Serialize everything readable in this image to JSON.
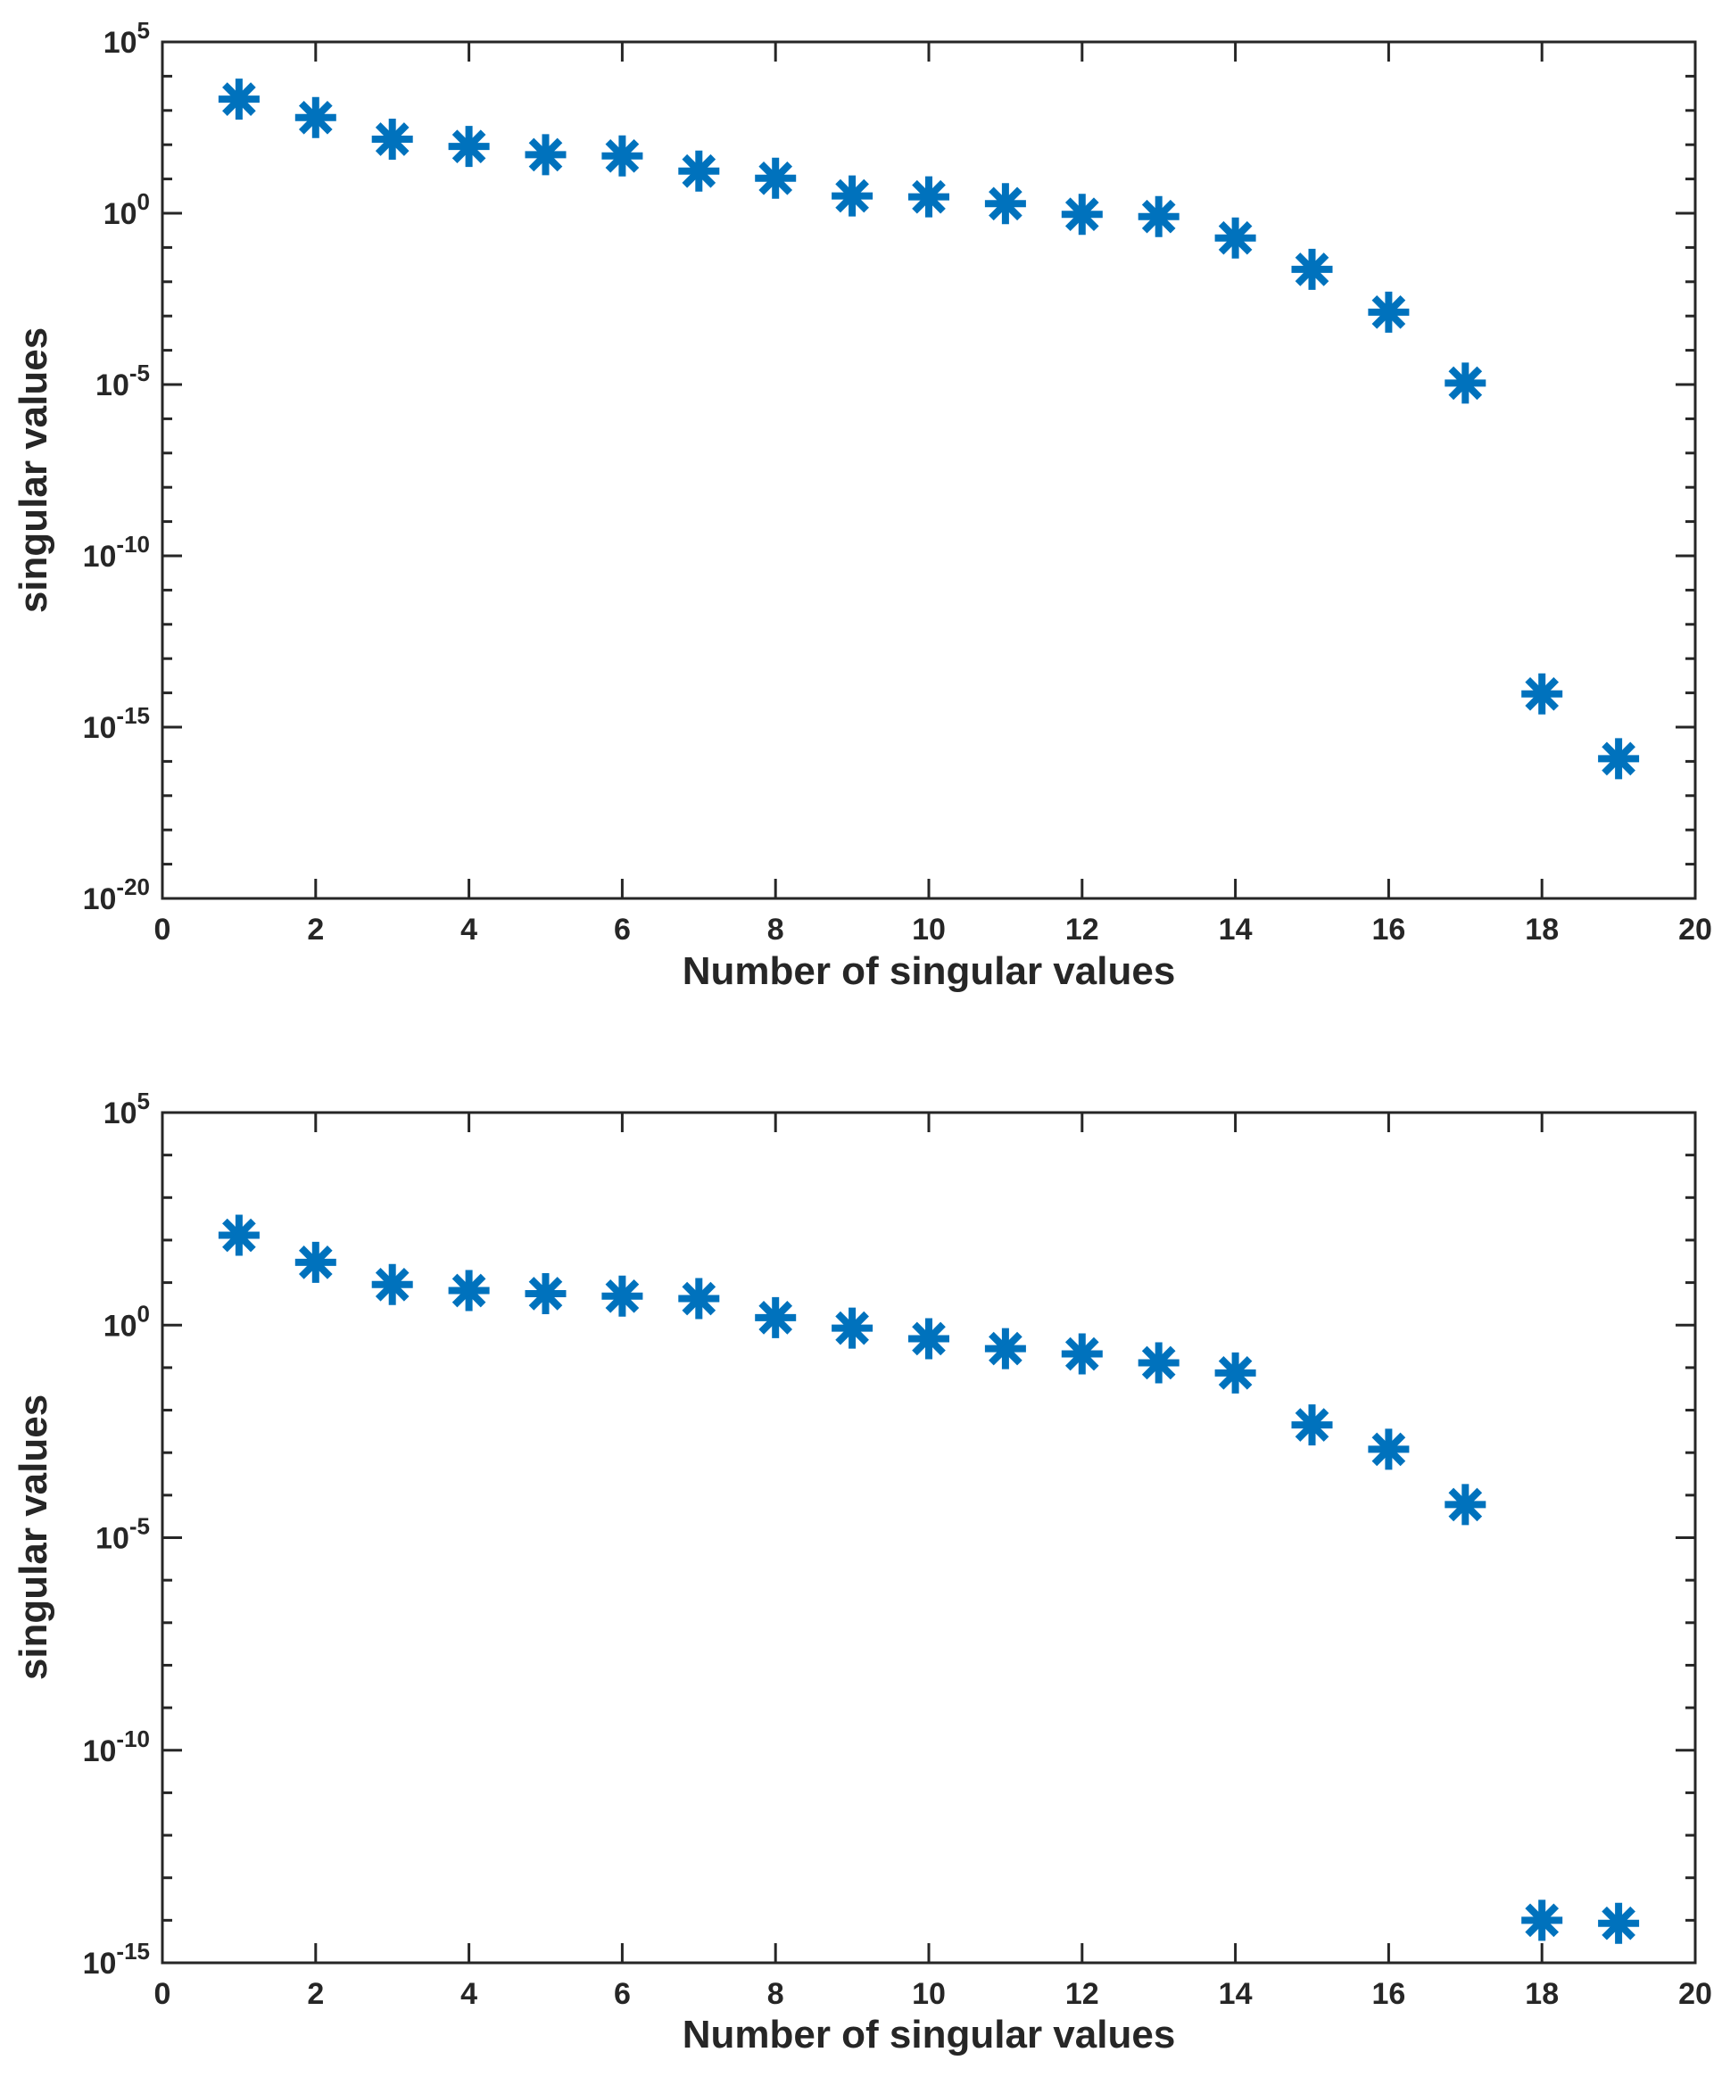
{
  "figure": {
    "background": "#ffffff",
    "marker_color": "#0072BD",
    "axis_color": "#262626",
    "text_color": "#262626"
  },
  "chart_data": [
    {
      "type": "scatter",
      "marker": "asterisk",
      "xlabel": "Number of singular values",
      "ylabel": "singular values",
      "x": [
        1,
        2,
        3,
        4,
        5,
        6,
        7,
        8,
        9,
        10,
        11,
        12,
        13,
        14,
        15,
        16,
        17,
        18,
        19
      ],
      "y": [
        2140,
        620,
        145,
        89,
        51,
        47,
        17,
        10.5,
        3.2,
        3.0,
        1.9,
        0.93,
        0.8,
        0.19,
        0.023,
        0.0013,
        1.1e-05,
        9.3e-15,
        1.2e-16
      ],
      "xlim": [
        0,
        20
      ],
      "xtick_values": [
        0,
        2,
        4,
        6,
        8,
        10,
        12,
        14,
        16,
        18,
        20
      ],
      "xtick_labels": [
        "0",
        "2",
        "4",
        "6",
        "8",
        "10",
        "12",
        "14",
        "16",
        "18",
        "20"
      ],
      "yscale": "log",
      "ylog_range": [
        5,
        -20
      ],
      "ytick_exponents": [
        5,
        0,
        -5,
        -10,
        -15,
        -20
      ],
      "ytick_labels": [
        "10^5",
        "10^0",
        "10^-5",
        "10^-10",
        "10^-15",
        "10^-20"
      ],
      "grid": false,
      "legend": null
    },
    {
      "type": "scatter",
      "marker": "asterisk",
      "xlabel": "Number of singular values",
      "ylabel": "singular values",
      "x": [
        1,
        2,
        3,
        4,
        5,
        6,
        7,
        8,
        9,
        10,
        11,
        12,
        13,
        14,
        15,
        16,
        17,
        18,
        19
      ],
      "y": [
        130,
        30,
        9,
        6.5,
        5.5,
        4.8,
        4.2,
        1.5,
        0.85,
        0.48,
        0.28,
        0.21,
        0.13,
        0.075,
        0.0045,
        0.0012,
        6e-05,
        1e-14,
        8.5e-15
      ],
      "xlim": [
        0,
        20
      ],
      "xtick_values": [
        0,
        2,
        4,
        6,
        8,
        10,
        12,
        14,
        16,
        18,
        20
      ],
      "xtick_labels": [
        "0",
        "2",
        "4",
        "6",
        "8",
        "10",
        "12",
        "14",
        "16",
        "18",
        "20"
      ],
      "yscale": "log",
      "ylog_range": [
        5,
        -15
      ],
      "ytick_exponents": [
        5,
        0,
        -5,
        -10,
        -15
      ],
      "ytick_labels": [
        "10^5",
        "10^0",
        "10^-5",
        "10^-10",
        "10^-15"
      ],
      "grid": false,
      "legend": null
    }
  ]
}
